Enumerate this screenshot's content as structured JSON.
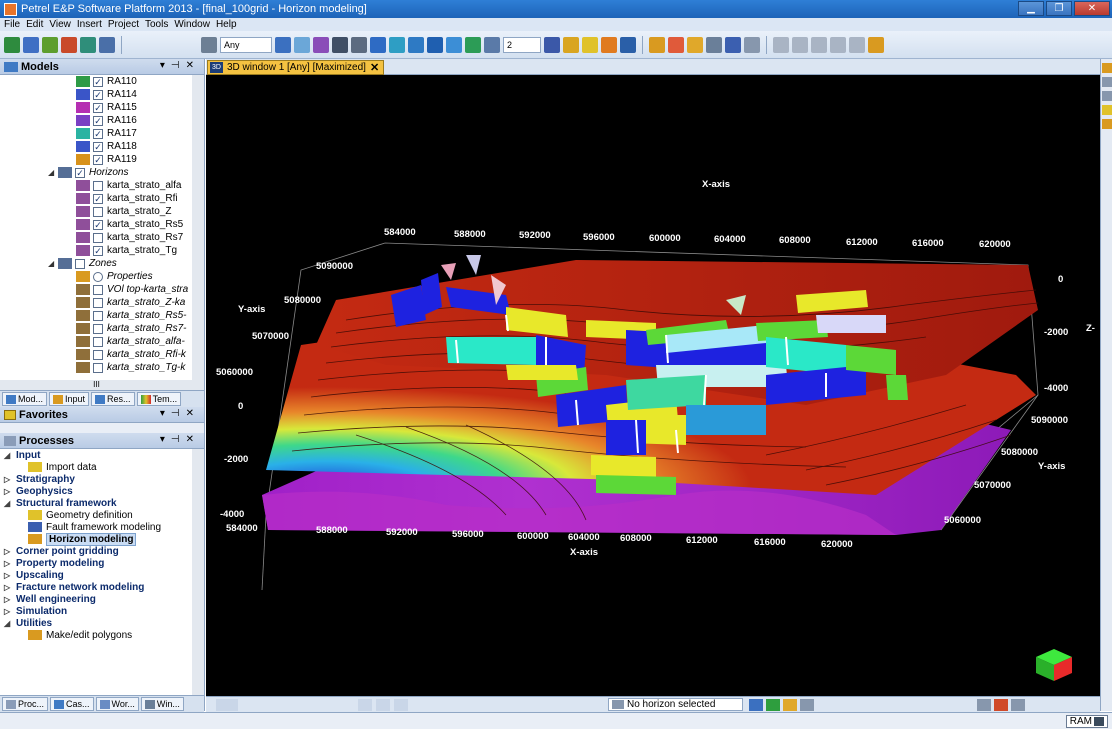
{
  "window": {
    "title": "Petrel E&P Software Platform 2013 - [final_100grid - Horizon modeling]"
  },
  "menu": [
    "File",
    "Edit",
    "View",
    "Insert",
    "Project",
    "Tools",
    "Window",
    "Help"
  ],
  "toolbar": {
    "domain_combo": "Any",
    "number_combo": "2"
  },
  "models_panel": {
    "title": "Models",
    "faults": [
      {
        "label": "RA110",
        "checked": true,
        "color": "#2e9b46"
      },
      {
        "label": "RA114",
        "checked": true,
        "color": "#3a55c8"
      },
      {
        "label": "RA115",
        "checked": true,
        "color": "#b52fb2"
      },
      {
        "label": "RA116",
        "checked": true,
        "color": "#7a3fc4"
      },
      {
        "label": "RA117",
        "checked": true,
        "color": "#2bb3a2"
      },
      {
        "label": "RA118",
        "checked": true,
        "color": "#3a55c8"
      },
      {
        "label": "RA119",
        "checked": true,
        "color": "#d8921b"
      }
    ],
    "horizons_folder": "Horizons",
    "horizons": [
      {
        "label": "karta_strato_alfa",
        "checked": false
      },
      {
        "label": "karta_strato_Rfi",
        "checked": true
      },
      {
        "label": "karta_strato_Z",
        "checked": false
      },
      {
        "label": "karta_strato_Rs5",
        "checked": true
      },
      {
        "label": "karta_strato_Rs7",
        "checked": false
      },
      {
        "label": "karta_strato_Tg",
        "checked": true
      }
    ],
    "zones_folder": "Zones",
    "zones": [
      {
        "label": "Properties",
        "kind": "props"
      },
      {
        "label": "VOl top-karta_stra",
        "checked": false
      },
      {
        "label": "karta_strato_Z-ka",
        "checked": false
      },
      {
        "label": "karta_strato_Rs5-",
        "checked": false
      },
      {
        "label": "karta_strato_Rs7-",
        "checked": false
      },
      {
        "label": "karta_strato_alfa-",
        "checked": false
      },
      {
        "label": "karta_strato_Rfi-k",
        "checked": false
      },
      {
        "label": "karta_strato_Tg-k",
        "checked": false
      }
    ],
    "scroll_glyph": "III"
  },
  "panel_tabs": [
    "Mod...",
    "Input",
    "Res...",
    "Tem..."
  ],
  "favorites_panel": {
    "title": "Favorites"
  },
  "processes_panel": {
    "title": "Processes",
    "items": [
      {
        "label": "Input",
        "level": 0,
        "expanded": true
      },
      {
        "label": "Import data",
        "level": 1
      },
      {
        "label": "Stratigraphy",
        "level": 0,
        "expanded": false
      },
      {
        "label": "Geophysics",
        "level": 0,
        "expanded": false
      },
      {
        "label": "Structural framework",
        "level": 0,
        "expanded": true
      },
      {
        "label": "Geometry definition",
        "level": 1
      },
      {
        "label": "Fault framework modeling",
        "level": 1
      },
      {
        "label": "Horizon modeling",
        "level": 1,
        "selected": true
      },
      {
        "label": "Corner point gridding",
        "level": 0,
        "expanded": false
      },
      {
        "label": "Property modeling",
        "level": 0,
        "expanded": false
      },
      {
        "label": "Upscaling",
        "level": 0,
        "expanded": false
      },
      {
        "label": "Fracture network modeling",
        "level": 0,
        "expanded": false
      },
      {
        "label": "Well engineering",
        "level": 0,
        "expanded": false
      },
      {
        "label": "Simulation",
        "level": 0,
        "expanded": false
      },
      {
        "label": "Utilities",
        "level": 0,
        "expanded": true
      },
      {
        "label": "Make/edit polygons",
        "level": 1
      }
    ],
    "scroll_glyph": "III"
  },
  "bottom_tabs": [
    "Proc...",
    "Cas...",
    "Wor...",
    "Win..."
  ],
  "doc_tab": {
    "icon": "3D",
    "label": "3D window 1 [Any] [Maximized]",
    "close": "✕"
  },
  "viewport": {
    "top_x_axis": {
      "title": "X-axis",
      "ticks": [
        "584000",
        "588000",
        "592000",
        "596000",
        "600000",
        "604000",
        "608000",
        "612000",
        "616000",
        "620000"
      ]
    },
    "left_y_axis": {
      "title": "Y-axis",
      "ticks": [
        "5090000",
        "5080000",
        "5070000",
        "5060000"
      ]
    },
    "left_z_ticks": [
      "0",
      "-2000",
      "-4000"
    ],
    "right_z_axis": {
      "title": "Z-",
      "ticks": [
        "0",
        "-2000",
        "-4000"
      ]
    },
    "right_y_axis": {
      "title": "Y-axis",
      "ticks": [
        "5090000",
        "5080000",
        "5070000",
        "5060000"
      ]
    },
    "bottom_x_axis": {
      "title": "X-axis",
      "ticks": [
        "584000",
        "588000",
        "592000",
        "596000",
        "600000",
        "604000",
        "608000",
        "612000",
        "616000",
        "620000"
      ]
    },
    "colors": {
      "horizon_red": "#c42a12",
      "horizon_magenta": "#a020c8",
      "fault_blue": "#1e22e0",
      "fault_yellow": "#e8e82a",
      "fault_cyan": "#2ae8c8",
      "fault_green": "#5cd838"
    }
  },
  "status": {
    "horizon_field": "No horizon selected",
    "ram_label": "RAM"
  }
}
